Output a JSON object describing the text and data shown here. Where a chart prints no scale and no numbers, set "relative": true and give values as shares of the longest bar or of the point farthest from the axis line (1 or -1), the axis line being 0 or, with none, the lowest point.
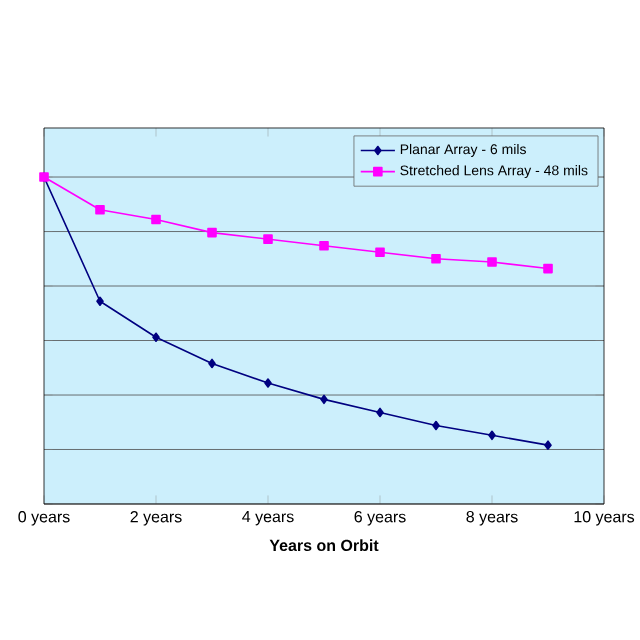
{
  "chart_data": {
    "type": "line",
    "relative": true,
    "xlabel": "Years on Orbit",
    "x": [
      0,
      1,
      2,
      3,
      4,
      5,
      6,
      7,
      8,
      9
    ],
    "xlim": [
      0,
      10
    ],
    "xticks": [
      {
        "value": 0,
        "label": "0 years"
      },
      {
        "value": 2,
        "label": "2 years"
      },
      {
        "value": 4,
        "label": "4 years"
      },
      {
        "value": 6,
        "label": "6 years"
      },
      {
        "value": 8,
        "label": "8 years"
      },
      {
        "value": 10,
        "label": "10 years"
      }
    ],
    "series": [
      {
        "name": "Planar Array - 6 mils",
        "color": "#000080",
        "marker": "diamond",
        "values": [
          1,
          0.62,
          0.51,
          0.43,
          0.37,
          0.32,
          0.28,
          0.24,
          0.21,
          0.18
        ]
      },
      {
        "name": "Stretched Lens Array - 48 mils",
        "color": "#ff00ff",
        "marker": "square",
        "values": [
          1,
          0.9,
          0.87,
          0.83,
          0.81,
          0.79,
          0.77,
          0.75,
          0.74,
          0.72
        ]
      }
    ],
    "grid": "y",
    "legend": "top right",
    "line_style": "solid",
    "tick_labels": "x"
  }
}
